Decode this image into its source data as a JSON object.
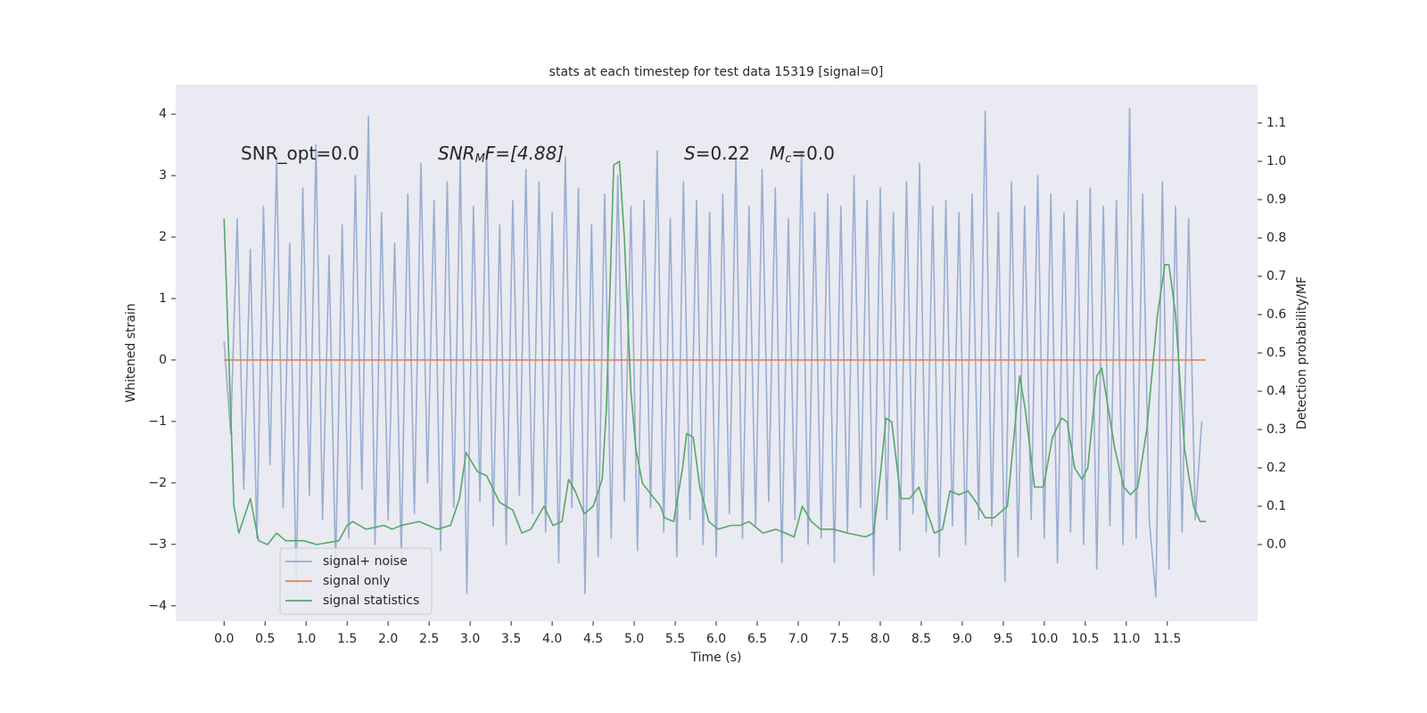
{
  "chart_data": {
    "type": "line",
    "title": "stats at each timestep for test data 15319 [signal=0]",
    "xlabel": "Time (s)",
    "ylabel": "Whitened strain",
    "y2label": "Detection probability/MF",
    "annotations": [
      [
        "SNR_opt=0.0"
      ],
      [
        "SNR",
        "M",
        "F=[4.88]"
      ],
      [
        "S",
        "=0.22",
        "M",
        "c",
        "=0.0"
      ]
    ],
    "grid": true,
    "legend": "lower left",
    "xlim": [
      -0.59,
      12.6
    ],
    "ylim": [
      -4.25,
      4.48
    ],
    "y2lim": [
      -0.2,
      1.2
    ],
    "xticks": [
      {
        "value": 0,
        "label": "0.0"
      },
      {
        "value": 0.5,
        "label": "0.5"
      },
      {
        "value": 1,
        "label": "1.0"
      },
      {
        "value": 1.5,
        "label": "1.5"
      },
      {
        "value": 2,
        "label": "2.0"
      },
      {
        "value": 2.5,
        "label": "2.5"
      },
      {
        "value": 3,
        "label": "3.0"
      },
      {
        "value": 3.5,
        "label": "3.5"
      },
      {
        "value": 4,
        "label": "4.0"
      },
      {
        "value": 4.5,
        "label": "4.5"
      },
      {
        "value": 5,
        "label": "5.0"
      },
      {
        "value": 5.5,
        "label": "5.5"
      },
      {
        "value": 6,
        "label": "6.0"
      },
      {
        "value": 6.5,
        "label": "6.5"
      },
      {
        "value": 7,
        "label": "7.0"
      },
      {
        "value": 7.5,
        "label": "7.5"
      },
      {
        "value": 8,
        "label": "8.0"
      },
      {
        "value": 8.5,
        "label": "8.5"
      },
      {
        "value": 9,
        "label": "9.0"
      },
      {
        "value": 9.5,
        "label": "9.5"
      },
      {
        "value": 10,
        "label": "10.0"
      },
      {
        "value": 10.5,
        "label": "10.5"
      },
      {
        "value": 11,
        "label": "11.0"
      },
      {
        "value": 11.5,
        "label": "11.5"
      }
    ],
    "yticks": [
      {
        "value": -4,
        "label": "−4"
      },
      {
        "value": -3,
        "label": "−3"
      },
      {
        "value": -2,
        "label": "−2"
      },
      {
        "value": -1,
        "label": "−1"
      },
      0,
      1,
      2,
      3,
      4
    ],
    "y2ticks": [
      {
        "value": 0,
        "label": "0.0"
      },
      {
        "value": 0.1,
        "label": "0.1"
      },
      {
        "value": 0.2,
        "label": "0.2"
      },
      {
        "value": 0.3,
        "label": "0.3"
      },
      {
        "value": 0.4,
        "label": "0.4"
      },
      {
        "value": 0.5,
        "label": "0.5"
      },
      {
        "value": 0.6,
        "label": "0.6"
      },
      {
        "value": 0.7,
        "label": "0.7"
      },
      {
        "value": 0.8,
        "label": "0.8"
      },
      {
        "value": 0.9,
        "label": "0.9"
      },
      {
        "value": 1,
        "label": "1.0"
      },
      {
        "value": 1.1,
        "label": "1.1"
      }
    ],
    "series": [
      {
        "name": "signal+ noise",
        "color": "#4c72b0",
        "opacity": 0.5,
        "x": [
          0,
          0.08,
          0.16,
          0.24,
          0.32,
          0.4,
          0.48,
          0.56,
          0.64,
          0.72,
          0.8,
          0.88,
          0.96,
          1.04,
          1.12,
          1.2,
          1.28,
          1.36,
          1.44,
          1.52,
          1.6,
          1.68,
          1.76,
          1.84,
          1.92,
          2,
          2.08,
          2.16,
          2.24,
          2.32,
          2.4,
          2.48,
          2.56,
          2.64,
          2.72,
          2.8,
          2.88,
          2.96,
          3.04,
          3.12,
          3.2,
          3.28,
          3.36,
          3.44,
          3.52,
          3.6,
          3.68,
          3.76,
          3.84,
          3.92,
          4,
          4.08,
          4.16,
          4.24,
          4.32,
          4.4,
          4.48,
          4.56,
          4.64,
          4.72,
          4.8,
          4.88,
          4.96,
          5.04,
          5.12,
          5.2,
          5.28,
          5.36,
          5.44,
          5.52,
          5.6,
          5.68,
          5.76,
          5.84,
          5.92,
          6,
          6.08,
          6.16,
          6.24,
          6.32,
          6.4,
          6.48,
          6.56,
          6.64,
          6.72,
          6.8,
          6.88,
          6.96,
          7.04,
          7.12,
          7.2,
          7.28,
          7.36,
          7.44,
          7.52,
          7.6,
          7.68,
          7.76,
          7.84,
          7.92,
          8,
          8.08,
          8.16,
          8.24,
          8.32,
          8.4,
          8.48,
          8.56,
          8.64,
          8.72,
          8.8,
          8.88,
          8.96,
          9.04,
          9.12,
          9.2,
          9.28,
          9.36,
          9.44,
          9.52,
          9.6,
          9.68,
          9.76,
          9.84,
          9.92,
          10,
          10.08,
          10.16,
          10.24,
          10.32,
          10.4,
          10.48,
          10.56,
          10.64,
          10.72,
          10.8,
          10.88,
          10.96,
          11.04,
          11.12,
          11.2,
          11.28,
          11.36,
          11.44,
          11.52,
          11.6,
          11.68,
          11.76,
          11.84,
          11.92
        ],
        "values": [
          0.3,
          -1.2,
          2.3,
          -2.1,
          1.8,
          -2.9,
          2.5,
          -1.7,
          3.3,
          -2.4,
          1.9,
          -3.7,
          2.8,
          -2.2,
          3.5,
          -2.6,
          1.7,
          -3.4,
          2.2,
          -2.9,
          3.0,
          -2.1,
          3.97,
          -3.0,
          2.4,
          -2.6,
          1.9,
          -3.2,
          2.7,
          -2.5,
          3.2,
          -2.0,
          2.6,
          -3.1,
          2.9,
          -2.4,
          3.3,
          -3.8,
          2.5,
          -2.3,
          3.4,
          -2.7,
          2.2,
          -3.0,
          2.6,
          -2.2,
          3.1,
          -2.5,
          2.9,
          -2.8,
          2.4,
          -3.3,
          3.3,
          -2.4,
          2.8,
          -3.8,
          2.2,
          -3.2,
          2.7,
          -2.9,
          3.0,
          -2.3,
          2.5,
          -3.1,
          2.6,
          -2.4,
          3.4,
          -2.8,
          2.3,
          -3.2,
          2.9,
          -2.6,
          2.6,
          -3.0,
          2.4,
          -3.2,
          2.7,
          -2.5,
          3.3,
          -2.9,
          2.5,
          -2.7,
          3.1,
          -2.3,
          2.8,
          -3.3,
          2.3,
          -2.6,
          3.4,
          -3.0,
          2.4,
          -2.9,
          2.7,
          -3.3,
          2.5,
          -2.8,
          3.0,
          -2.4,
          2.6,
          -3.5,
          2.8,
          -2.6,
          2.4,
          -3.1,
          2.9,
          -2.5,
          3.2,
          -2.8,
          2.5,
          -3.2,
          2.6,
          -2.7,
          2.4,
          -3.0,
          2.7,
          -2.6,
          4.05,
          -2.7,
          2.4,
          -3.6,
          2.9,
          -3.2,
          2.5,
          -2.6,
          3.0,
          -2.9,
          2.7,
          -3.3,
          2.4,
          -2.8,
          2.6,
          -3.0,
          2.8,
          -3.4,
          2.5,
          -2.7,
          2.6,
          -3.0,
          4.1,
          -2.9,
          2.7,
          -2.6,
          -3.85,
          2.9,
          -3.4,
          2.5,
          -2.8,
          2.3,
          -2.6,
          -1.0
        ]
      },
      {
        "name": "signal only",
        "color": "#dd8452",
        "x": [
          0,
          11.97
        ],
        "values": [
          0,
          0
        ]
      },
      {
        "name": "signal statistics",
        "color": "#55a868",
        "axis": "y2",
        "x": [
          0,
          0.12,
          0.18,
          0.32,
          0.42,
          0.53,
          0.64,
          0.75,
          0.97,
          1.13,
          1.4,
          1.5,
          1.57,
          1.73,
          1.95,
          2.05,
          2.16,
          2.38,
          2.49,
          2.6,
          2.76,
          2.87,
          2.95,
          3.09,
          3.2,
          3.36,
          3.52,
          3.63,
          3.74,
          3.9,
          4.01,
          4.12,
          4.2,
          4.28,
          4.39,
          4.5,
          4.61,
          4.66,
          4.75,
          4.82,
          4.88,
          4.96,
          5.02,
          5.1,
          5.21,
          5.32,
          5.37,
          5.48,
          5.59,
          5.64,
          5.72,
          5.8,
          5.91,
          6.02,
          6.18,
          6.29,
          6.4,
          6.57,
          6.73,
          6.84,
          6.95,
          7.05,
          7.16,
          7.27,
          7.43,
          7.6,
          7.82,
          7.92,
          8.01,
          8.07,
          8.14,
          8.25,
          8.36,
          8.47,
          8.58,
          8.66,
          8.76,
          8.85,
          8.96,
          9.07,
          9.17,
          9.28,
          9.39,
          9.55,
          9.7,
          9.77,
          9.88,
          9.99,
          10.1,
          10.21,
          10.28,
          10.37,
          10.46,
          10.53,
          10.64,
          10.7,
          10.86,
          10.97,
          11.05,
          11.14,
          11.25,
          11.38,
          11.47,
          11.52,
          11.6,
          11.71,
          11.82,
          11.9,
          11.97
        ],
        "values": [
          0.85,
          0.1,
          0.03,
          0.12,
          0.01,
          0.0,
          0.03,
          0.01,
          0.01,
          0.0,
          0.01,
          0.05,
          0.06,
          0.04,
          0.05,
          0.04,
          0.05,
          0.06,
          0.05,
          0.04,
          0.05,
          0.12,
          0.24,
          0.19,
          0.18,
          0.11,
          0.09,
          0.03,
          0.04,
          0.1,
          0.05,
          0.06,
          0.17,
          0.14,
          0.08,
          0.1,
          0.17,
          0.35,
          0.99,
          1.0,
          0.8,
          0.4,
          0.25,
          0.16,
          0.13,
          0.1,
          0.07,
          0.06,
          0.2,
          0.29,
          0.28,
          0.15,
          0.06,
          0.04,
          0.05,
          0.05,
          0.06,
          0.03,
          0.04,
          0.03,
          0.02,
          0.1,
          0.06,
          0.04,
          0.04,
          0.03,
          0.02,
          0.03,
          0.2,
          0.33,
          0.32,
          0.12,
          0.12,
          0.15,
          0.08,
          0.03,
          0.04,
          0.14,
          0.13,
          0.14,
          0.11,
          0.07,
          0.07,
          0.1,
          0.44,
          0.35,
          0.15,
          0.15,
          0.28,
          0.33,
          0.32,
          0.2,
          0.17,
          0.2,
          0.44,
          0.46,
          0.25,
          0.15,
          0.13,
          0.15,
          0.3,
          0.6,
          0.73,
          0.73,
          0.6,
          0.25,
          0.1,
          0.06,
          0.06
        ]
      }
    ]
  }
}
